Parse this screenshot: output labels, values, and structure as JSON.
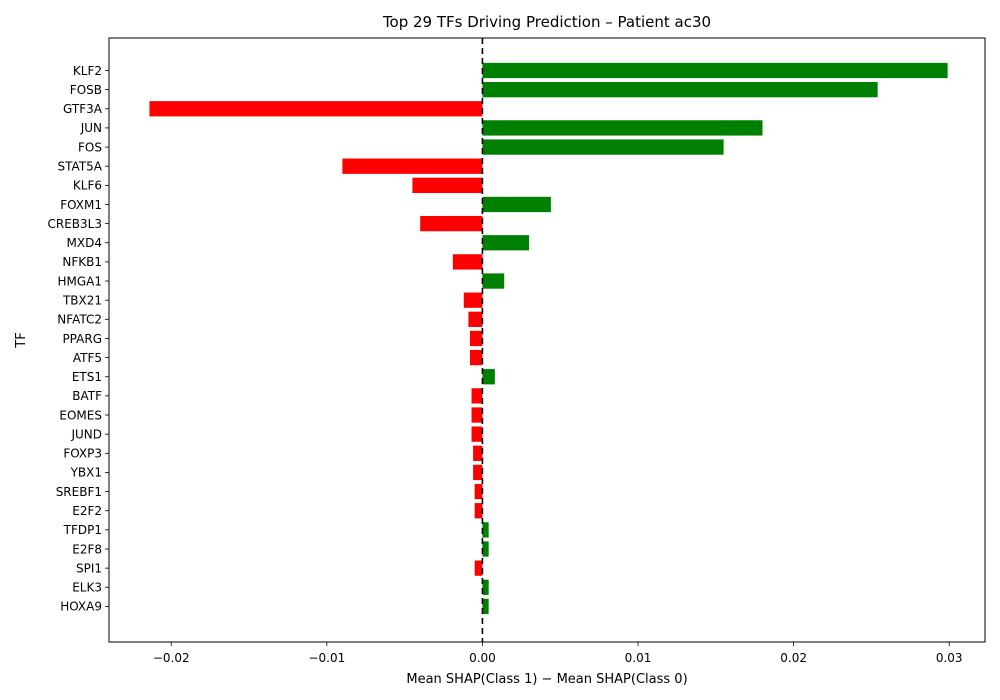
{
  "chart_data": {
    "type": "bar",
    "orientation": "horizontal",
    "title": "Top 29 TFs Driving Prediction – Patient ac30",
    "xlabel": "Mean SHAP(Class 1) − Mean SHAP(Class 0)",
    "ylabel": "TF",
    "xlim": [
      -0.024,
      0.0323
    ],
    "xticks": [
      -0.02,
      -0.01,
      0.0,
      0.01,
      0.02,
      0.03
    ],
    "xtick_labels": [
      "−0.02",
      "−0.01",
      "0.00",
      "0.01",
      "0.02",
      "0.03"
    ],
    "zero_line": true,
    "grid": false,
    "colors": {
      "positive": "#008000",
      "negative": "#ff0000",
      "zero_line": "#000000"
    },
    "categories": [
      "KLF2",
      "FOSB",
      "GTF3A",
      "JUN",
      "FOS",
      "STAT5A",
      "KLF6",
      "FOXM1",
      "CREB3L3",
      "MXD4",
      "NFKB1",
      "HMGA1",
      "TBX21",
      "NFATC2",
      "PPARG",
      "ATF5",
      "ETS1",
      "BATF",
      "EOMES",
      "JUND",
      "FOXP3",
      "YBX1",
      "SREBF1",
      "E2F2",
      "TFDP1",
      "E2F8",
      "SPI1",
      "ELK3",
      "HOXA9"
    ],
    "values": [
      0.0299,
      0.0254,
      -0.0214,
      0.018,
      0.0155,
      -0.009,
      -0.0045,
      0.0044,
      -0.004,
      0.003,
      -0.0019,
      0.0014,
      -0.0012,
      -0.0009,
      -0.0008,
      -0.0008,
      0.0008,
      -0.0007,
      -0.0007,
      -0.0007,
      -0.0006,
      -0.0006,
      -0.0005,
      -0.0005,
      0.0004,
      0.0004,
      -0.0005,
      0.0004,
      0.0004
    ]
  }
}
